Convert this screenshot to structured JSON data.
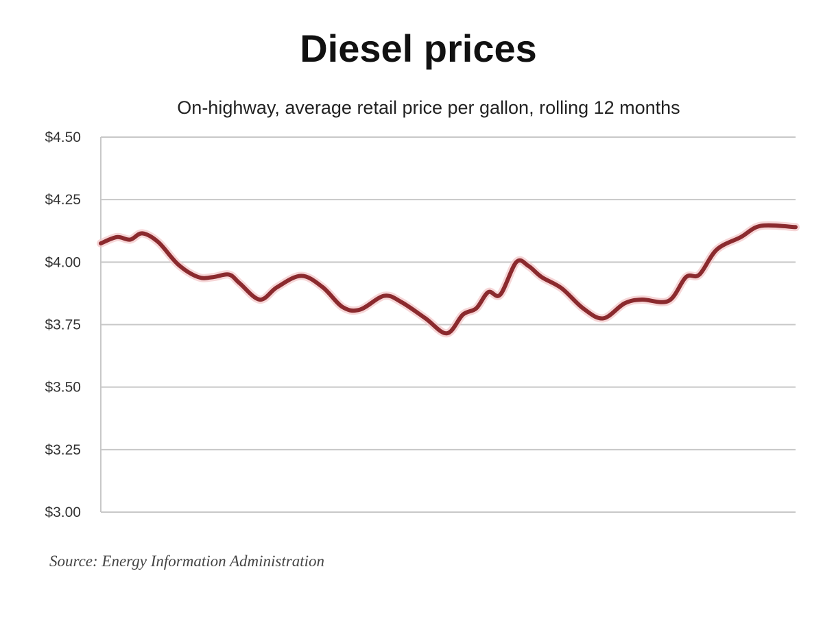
{
  "chart_data": {
    "type": "line",
    "title": "Diesel prices",
    "subtitle": "On-highway, average retail price per gallon, rolling 12 months",
    "source": "Source: Energy Information Administration",
    "xlabel": "",
    "ylabel": "",
    "ylim": [
      3.0,
      4.5
    ],
    "xlim": [
      0,
      52
    ],
    "grid": true,
    "yticks": [
      4.5,
      4.25,
      4.0,
      3.75,
      3.5,
      3.25,
      3.0
    ],
    "ytick_labels": [
      "$4.50",
      "$4.25",
      "$4.00",
      "$3.75",
      "$3.50",
      "$3.25",
      "$3.00"
    ],
    "series": [
      {
        "name": "Diesel price",
        "color": "#8b2a2e",
        "x": [
          0,
          1.2,
          2.2,
          3.1,
          4.3,
          5.8,
          7.3,
          8.4,
          9.6,
          10.4,
          11.9,
          13.2,
          15.0,
          16.6,
          18.1,
          19.4,
          21.2,
          22.5,
          24.3,
          25.9,
          27.1,
          28.1,
          29.0,
          29.9,
          31.1,
          32.0,
          33.0,
          34.5,
          36.1,
          37.6,
          39.2,
          40.5,
          42.5,
          43.8,
          44.8,
          46.1,
          47.9,
          49.4,
          52
        ],
        "values": [
          4.075,
          4.1,
          4.09,
          4.115,
          4.08,
          3.99,
          3.94,
          3.94,
          3.95,
          3.915,
          3.85,
          3.9,
          3.945,
          3.9,
          3.82,
          3.81,
          3.865,
          3.84,
          3.775,
          3.715,
          3.79,
          3.815,
          3.88,
          3.87,
          4.0,
          3.985,
          3.94,
          3.895,
          3.815,
          3.775,
          3.835,
          3.85,
          3.845,
          3.94,
          3.95,
          4.05,
          4.1,
          4.145,
          4.14
        ]
      }
    ]
  }
}
